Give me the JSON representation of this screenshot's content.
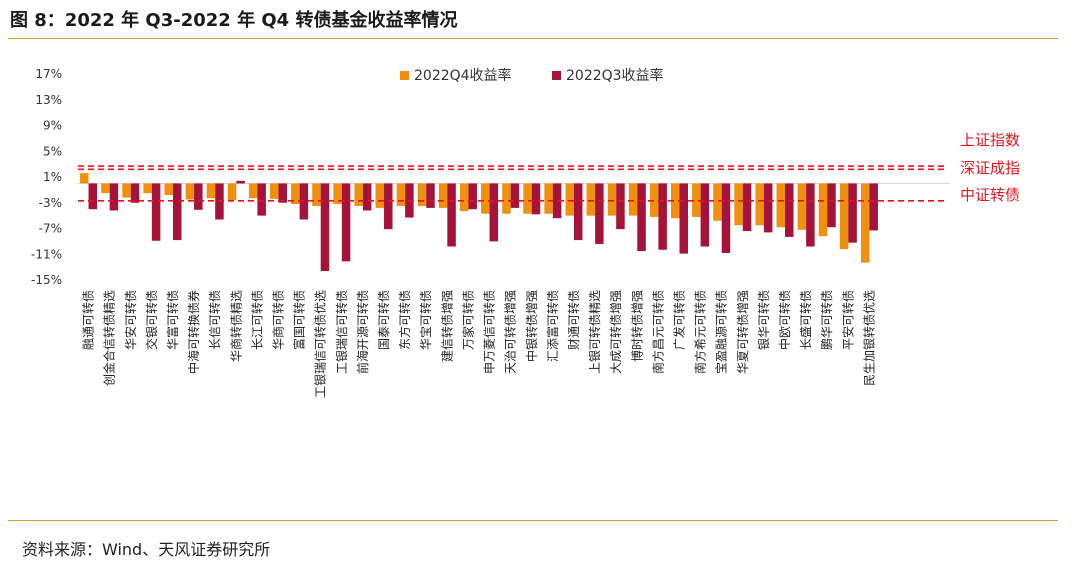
{
  "title": "图 8：2022 年 Q3-2022 年 Q4 转债基金收益率情况",
  "source": "资料来源：Wind、天风证券研究所",
  "colors": {
    "q4": "#f0900f",
    "q3": "#a5123a",
    "ref_line": "#e8141c",
    "accent_rule": "#d4a017"
  },
  "chart_data": {
    "type": "bar",
    "title": "",
    "xlabel": "",
    "ylabel": "",
    "ylim": [
      -15,
      17
    ],
    "yticks": [
      17,
      13,
      9,
      5,
      1,
      -3,
      -7,
      -11,
      -15
    ],
    "ytick_labels": [
      "17%",
      "13%",
      "9%",
      "5%",
      "1%",
      "-3%",
      "-7%",
      "-11%",
      "-15%"
    ],
    "legend_position": "top-center",
    "categories": [
      "融通可转债",
      "创金合信转债精选",
      "华安可转债",
      "交银可转债",
      "华富可转债",
      "中海可转换债券",
      "长信可转债",
      "华商转债精选",
      "长江可转债",
      "华商可转债",
      "富国可转债",
      "工银瑞信可转债优选",
      "工银瑞信可转债",
      "前海开源可转债",
      "国泰可转债",
      "东方可转债",
      "华宝可转债",
      "建信转债增强",
      "万家可转债",
      "申万菱信可转债",
      "天治可转债增强",
      "中银转债增强",
      "汇添富可转债",
      "财通可转债",
      "上银可转债精选",
      "大成可转债增强",
      "博时转债增强",
      "南方昌元可转债",
      "广发可转债",
      "南方希元可转债",
      "宝盈融源可转债",
      "华夏可转债增强",
      "银华可转债",
      "中欧可转债",
      "长盛可转债",
      "鹏华可转债",
      "平安可转债",
      "民生加银转债优选"
    ],
    "series": [
      {
        "name": "2022Q4收益率",
        "values": [
          1.6,
          -1.5,
          -2.2,
          -1.5,
          -1.8,
          -2.5,
          -2.3,
          -2.6,
          -2.3,
          -2.4,
          -3.2,
          -3.5,
          -3.2,
          -3.5,
          -3.8,
          -3.5,
          -3.5,
          -3.8,
          -4.3,
          -4.7,
          -4.7,
          -4.7,
          -4.7,
          -5.0,
          -5.0,
          -5.0,
          -5.0,
          -5.2,
          -5.4,
          -5.2,
          -5.8,
          -6.5,
          -6.5,
          -6.8,
          -7.2,
          -8.2,
          -10.2,
          -12.3
        ]
      },
      {
        "name": "2022Q3收益率",
        "values": [
          -4.0,
          -4.2,
          -3.0,
          -8.9,
          -8.8,
          -4.1,
          -5.6,
          0.4,
          -5.0,
          -3.0,
          -5.6,
          -13.6,
          -12.1,
          -4.2,
          -7.1,
          -5.3,
          -3.8,
          -9.8,
          -4.0,
          -9.0,
          -3.8,
          -4.8,
          -5.4,
          -8.8,
          -9.4,
          -7.1,
          -10.5,
          -10.3,
          -10.9,
          -9.8,
          -10.8,
          -7.4,
          -7.6,
          -8.3,
          -9.8,
          -6.8,
          -9.2,
          -7.3
        ]
      }
    ],
    "reference_lines": [
      {
        "label": "上证指数",
        "value": 2.7
      },
      {
        "label": "深证成指",
        "value": 2.2
      },
      {
        "label": "中证转债",
        "value": -2.7
      }
    ]
  }
}
